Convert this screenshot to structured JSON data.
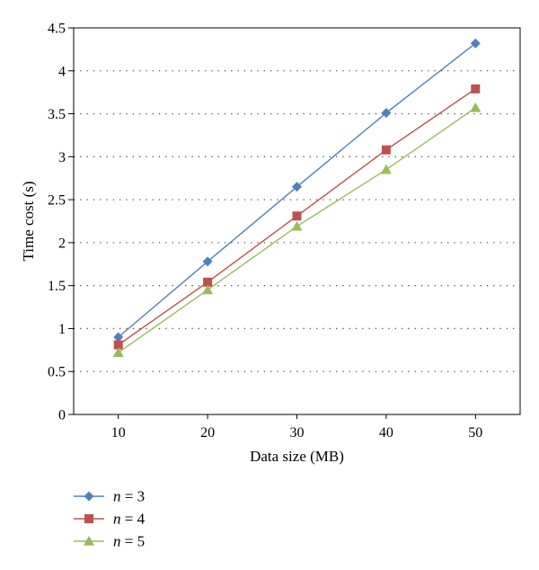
{
  "chart_data": {
    "type": "line",
    "xlabel": "Data size (MB)",
    "ylabel": "Time cost (s)",
    "x": [
      10,
      20,
      30,
      40,
      50
    ],
    "xlim": [
      5,
      55
    ],
    "ylim": [
      0,
      4.5
    ],
    "xticks": [
      "10",
      "20",
      "30",
      "40",
      "50"
    ],
    "yticks": [
      "0",
      "0.5",
      "1",
      "1.5",
      "2",
      "2.5",
      "3",
      "3.5",
      "4",
      "4.5"
    ],
    "grid": "horizontal dotted",
    "legend_position": "bottom-left",
    "series": [
      {
        "name_var": "n",
        "name_rest": " = 3",
        "color": "#4F81BD",
        "marker": "diamond",
        "values": [
          0.9,
          1.78,
          2.65,
          3.51,
          4.32
        ]
      },
      {
        "name_var": "n",
        "name_rest": " = 4",
        "color": "#C0504D",
        "marker": "square",
        "values": [
          0.81,
          1.54,
          2.31,
          3.08,
          3.79
        ]
      },
      {
        "name_var": "n",
        "name_rest": " = 5",
        "color": "#9BBB59",
        "marker": "triangle",
        "values": [
          0.72,
          1.45,
          2.19,
          2.85,
          3.57
        ]
      }
    ]
  }
}
